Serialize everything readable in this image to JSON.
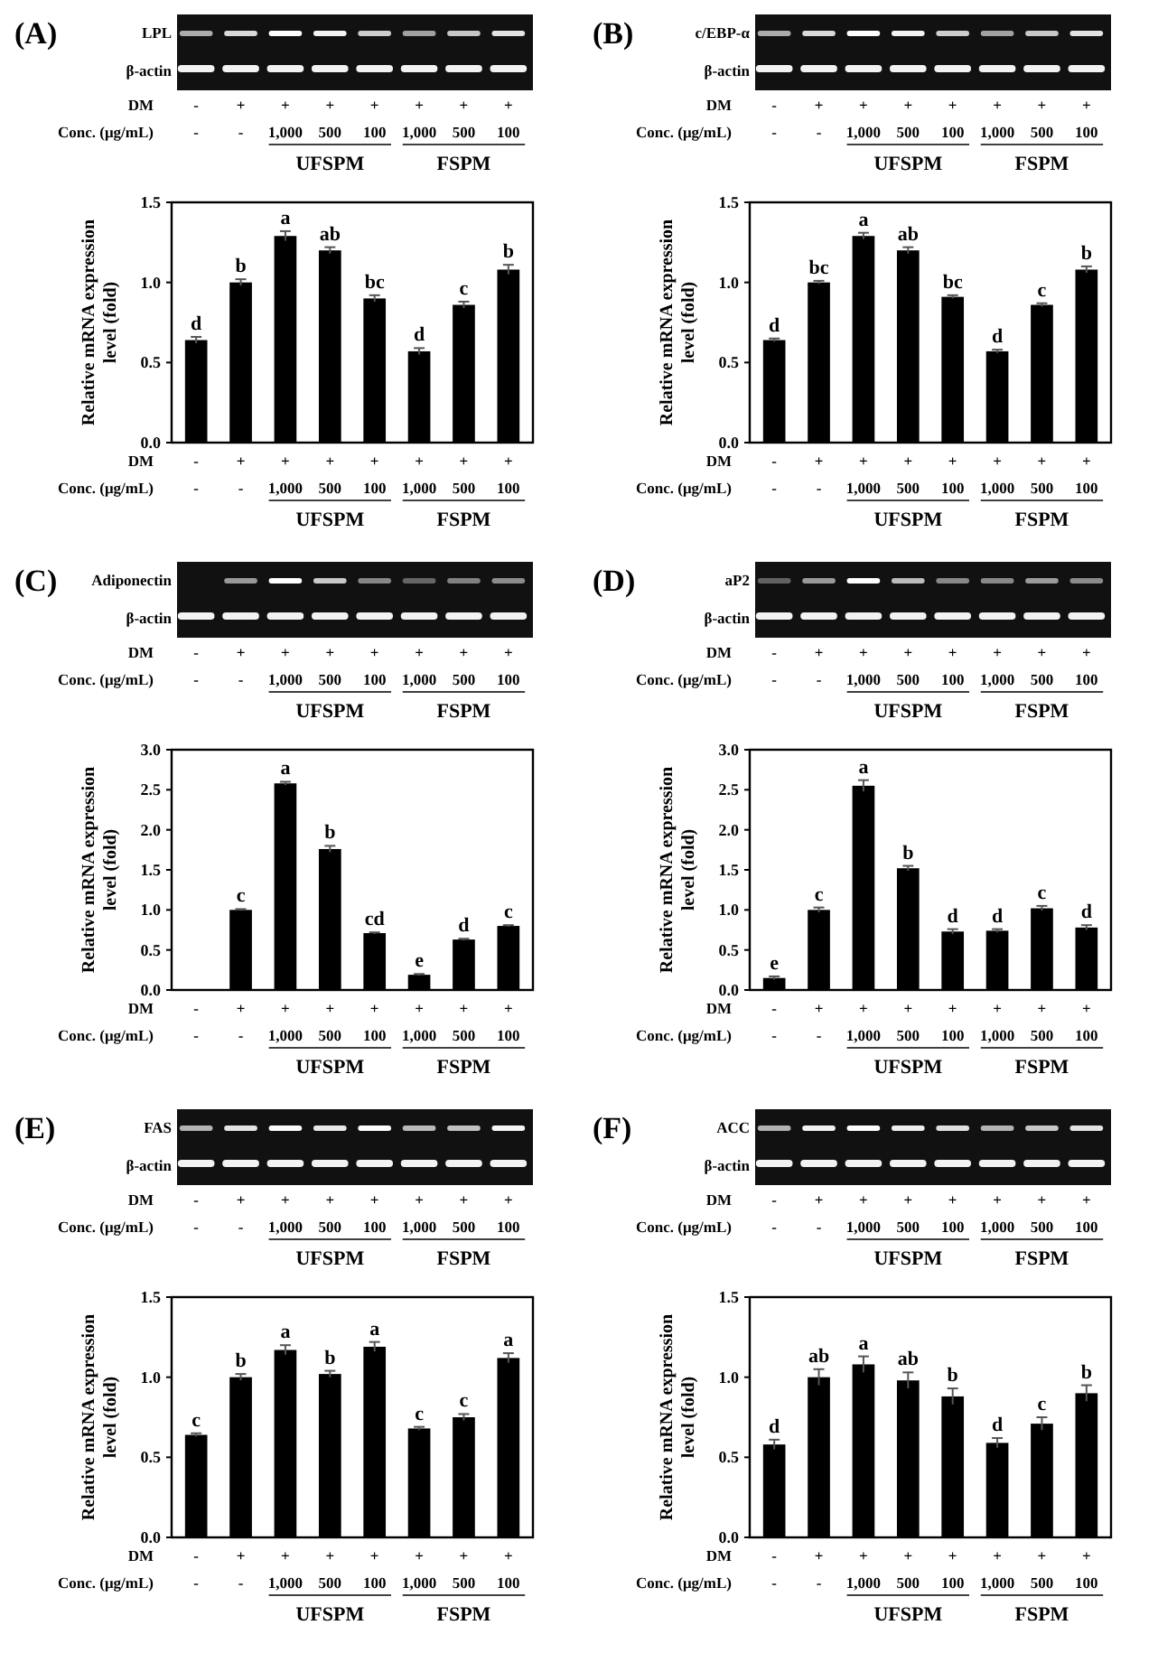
{
  "chart_data": [
    {
      "type": "bar",
      "title": "(A)",
      "ylabel": "Relative mRNA expression level (fold)",
      "categories": [
        "-\n-",
        "+\n-",
        "+\n1,000",
        "+\n500",
        "+\n100",
        "+\n1,000",
        "+\n500",
        "+\n100"
      ],
      "values": [
        0.64,
        1.0,
        1.29,
        1.2,
        0.9,
        0.57,
        0.86,
        1.08
      ],
      "errors": [
        0.02,
        0.02,
        0.03,
        0.02,
        0.02,
        0.02,
        0.02,
        0.03
      ],
      "value_labels": [
        "d",
        "b",
        "a",
        "ab",
        "bc",
        "d",
        "c",
        "b"
      ],
      "color": "#000000",
      "ylim": [
        0,
        1.5
      ],
      "yticks": [
        {
          "value": 0,
          "label": "0.0"
        },
        {
          "value": 0.5,
          "label": "0.5"
        },
        {
          "value": 1,
          "label": "1.0"
        },
        {
          "value": 1.5,
          "label": "1.5"
        }
      ],
      "grid": false,
      "annotations": [
        "DM",
        "Conc. (μg/mL)",
        "UFSPM",
        "FSPM",
        "LPL",
        "β-actin"
      ]
    },
    {
      "type": "bar",
      "title": "(B)",
      "ylabel": "Relative mRNA expression level (fold)",
      "categories": [
        "-\n-",
        "+\n-",
        "+\n1,000",
        "+\n500",
        "+\n100",
        "+\n1,000",
        "+\n500",
        "+\n100"
      ],
      "values": [
        0.64,
        1.0,
        1.29,
        1.2,
        0.91,
        0.57,
        0.86,
        1.08
      ],
      "errors": [
        0.01,
        0.01,
        0.02,
        0.02,
        0.01,
        0.01,
        0.01,
        0.02
      ],
      "value_labels": [
        "d",
        "bc",
        "a",
        "ab",
        "bc",
        "d",
        "c",
        "b"
      ],
      "color": "#000000",
      "ylim": [
        0,
        1.5
      ],
      "yticks": [
        {
          "value": 0,
          "label": "0.0"
        },
        {
          "value": 0.5,
          "label": "0.5"
        },
        {
          "value": 1,
          "label": "1.0"
        },
        {
          "value": 1.5,
          "label": "1.5"
        }
      ],
      "grid": false,
      "annotations": [
        "DM",
        "Conc. (μg/mL)",
        "UFSPM",
        "FSPM",
        "c/EBP-α",
        "β-actin"
      ]
    },
    {
      "type": "bar",
      "title": "(C)",
      "ylabel": "Relative mRNA expression level (fold)",
      "categories": [
        "-\n-",
        "+\n-",
        "+\n1,000",
        "+\n500",
        "+\n100",
        "+\n1,000",
        "+\n500",
        "+\n100"
      ],
      "values": [
        null,
        1.0,
        2.58,
        1.76,
        0.71,
        0.19,
        0.63,
        0.8
      ],
      "errors": [
        null,
        0.01,
        0.02,
        0.04,
        0.01,
        0.01,
        0.01,
        0.01
      ],
      "value_labels": [
        null,
        "c",
        "a",
        "b",
        "cd",
        "e",
        "d",
        "c"
      ],
      "color": "#000000",
      "ylim": [
        0,
        3
      ],
      "yticks": [
        {
          "value": 0,
          "label": "0.0"
        },
        {
          "value": 0.5,
          "label": "0.5"
        },
        {
          "value": 1,
          "label": "1.0"
        },
        {
          "value": 1.5,
          "label": "1.5"
        },
        {
          "value": 2,
          "label": "2.0"
        },
        {
          "value": 2.5,
          "label": "2.5"
        },
        {
          "value": 3,
          "label": "3.0"
        }
      ],
      "grid": false,
      "annotations": [
        "DM",
        "Conc. (μg/mL)",
        "UFSPM",
        "FSPM",
        "Adiponectin",
        "β-actin"
      ]
    },
    {
      "type": "bar",
      "title": "(D)",
      "ylabel": "Relative mRNA expression level (fold)",
      "categories": [
        "-\n-",
        "+\n-",
        "+\n1,000",
        "+\n500",
        "+\n100",
        "+\n1,000",
        "+\n500",
        "+\n100"
      ],
      "values": [
        0.15,
        1.0,
        2.55,
        1.52,
        0.73,
        0.74,
        1.02,
        0.78
      ],
      "errors": [
        0.02,
        0.03,
        0.07,
        0.03,
        0.03,
        0.02,
        0.03,
        0.03
      ],
      "value_labels": [
        "e",
        "c",
        "a",
        "b",
        "d",
        "d",
        "c",
        "d"
      ],
      "color": "#000000",
      "ylim": [
        0,
        3
      ],
      "yticks": [
        {
          "value": 0,
          "label": "0.0"
        },
        {
          "value": 0.5,
          "label": "0.5"
        },
        {
          "value": 1,
          "label": "1.0"
        },
        {
          "value": 1.5,
          "label": "1.5"
        },
        {
          "value": 2,
          "label": "2.0"
        },
        {
          "value": 2.5,
          "label": "2.5"
        },
        {
          "value": 3,
          "label": "3.0"
        }
      ],
      "grid": false,
      "annotations": [
        "DM",
        "Conc. (μg/mL)",
        "UFSPM",
        "FSPM",
        "aP2",
        "β-actin"
      ]
    },
    {
      "type": "bar",
      "title": "(E)",
      "ylabel": "Relative mRNA expression level (fold)",
      "categories": [
        "-\n-",
        "+\n-",
        "+\n1,000",
        "+\n500",
        "+\n100",
        "+\n1,000",
        "+\n500",
        "+\n100"
      ],
      "values": [
        0.64,
        1.0,
        1.17,
        1.02,
        1.19,
        0.68,
        0.75,
        1.12
      ],
      "errors": [
        0.01,
        0.02,
        0.03,
        0.02,
        0.03,
        0.01,
        0.02,
        0.03
      ],
      "value_labels": [
        "c",
        "b",
        "a",
        "b",
        "a",
        "c",
        "c",
        "a"
      ],
      "color": "#000000",
      "ylim": [
        0,
        1.5
      ],
      "yticks": [
        {
          "value": 0,
          "label": "0.0"
        },
        {
          "value": 0.5,
          "label": "0.5"
        },
        {
          "value": 1,
          "label": "1.0"
        },
        {
          "value": 1.5,
          "label": "1.5"
        }
      ],
      "grid": false,
      "annotations": [
        "DM",
        "Conc. (μg/mL)",
        "UFSPM",
        "FSPM",
        "FAS",
        "β-actin"
      ]
    },
    {
      "type": "bar",
      "title": "(F)",
      "ylabel": "Relative mRNA expression level (fold)",
      "categories": [
        "-\n-",
        "+\n-",
        "+\n1,000",
        "+\n500",
        "+\n100",
        "+\n1,000",
        "+\n500",
        "+\n100"
      ],
      "values": [
        0.58,
        1.0,
        1.08,
        0.98,
        0.88,
        0.59,
        0.71,
        0.9
      ],
      "errors": [
        0.03,
        0.05,
        0.05,
        0.05,
        0.05,
        0.03,
        0.04,
        0.05
      ],
      "value_labels": [
        "d",
        "ab",
        "a",
        "ab",
        "b",
        "d",
        "c",
        "b"
      ],
      "color": "#000000",
      "ylim": [
        0,
        1.5
      ],
      "yticks": [
        {
          "value": 0,
          "label": "0.0"
        },
        {
          "value": 0.5,
          "label": "0.5"
        },
        {
          "value": 1,
          "label": "1.0"
        },
        {
          "value": 1.5,
          "label": "1.5"
        }
      ],
      "grid": false,
      "annotations": [
        "DM",
        "Conc. (μg/mL)",
        "UFSPM",
        "FSPM",
        "ACC",
        "β-actin"
      ]
    }
  ]
}
